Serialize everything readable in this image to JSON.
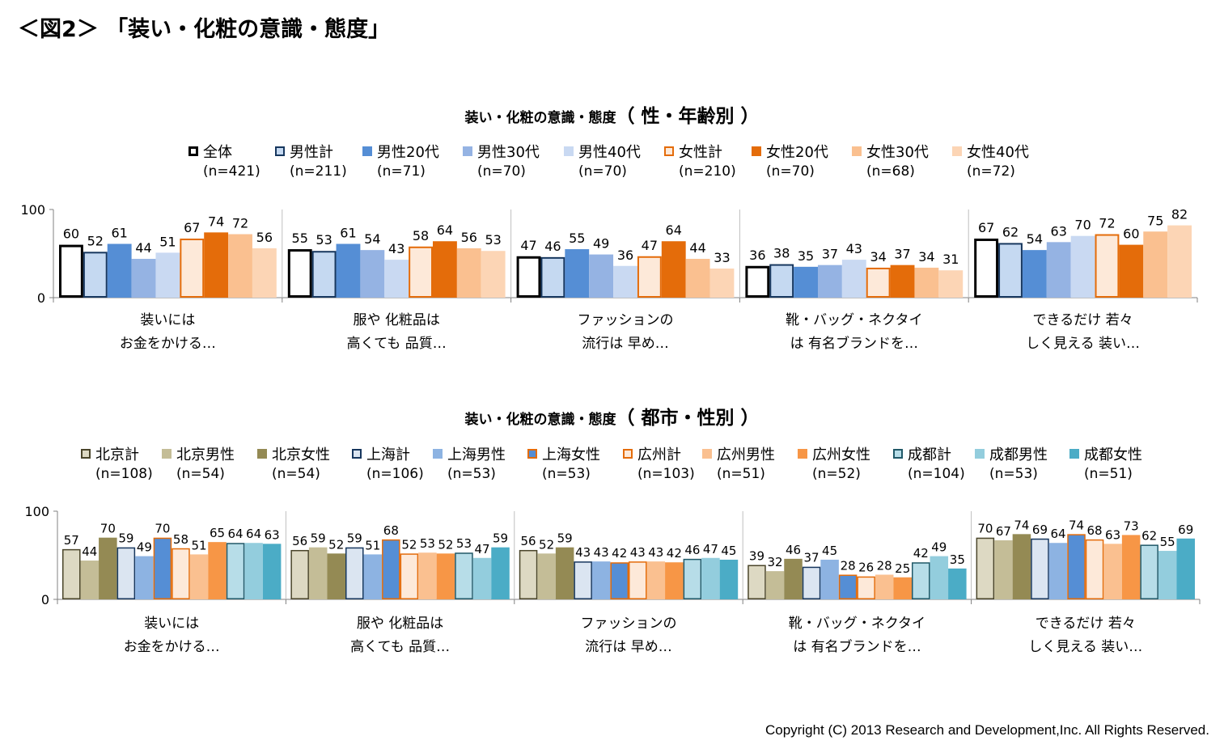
{
  "page": {
    "title": "＜図2＞ 「装い・化粧の意識・態度」",
    "copyright": "Copyright (C) 2013 Research and Development,Inc. All Rights Reserved."
  },
  "chart_data": [
    {
      "type": "bar",
      "title_main": "装い・化粧の意識・態度",
      "title_sub": "（ 性・年齢別 ）",
      "ylim": [
        0,
        100
      ],
      "yticks": [
        "0",
        "100"
      ],
      "categories": [
        [
          "装いには",
          "お金をかける…"
        ],
        [
          "服や 化粧品は",
          "高くても 品質…"
        ],
        [
          "ファッションの",
          "流行は 早め…"
        ],
        [
          "靴・バッグ・ネクタイ",
          "は 有名ブランドを…"
        ],
        [
          "できるだけ 若々",
          "しく見える 装い…"
        ]
      ],
      "series": [
        {
          "name": "全体",
          "n": "(n=421)",
          "fill": "#ffffff",
          "stroke": "#000000",
          "sw": 3,
          "values": [
            60,
            55,
            47,
            36,
            67
          ]
        },
        {
          "name": "男性計",
          "n": "(n=211)",
          "fill": "#c5d9f1",
          "stroke": "#17375e",
          "sw": 2,
          "values": [
            52,
            53,
            46,
            38,
            62
          ]
        },
        {
          "name": "男性20代",
          "n": "(n=71)",
          "fill": "#558ed5",
          "stroke": "#558ed5",
          "sw": 0,
          "values": [
            61,
            61,
            55,
            35,
            54
          ]
        },
        {
          "name": "男性30代",
          "n": "(n=70)",
          "fill": "#95b3e3",
          "stroke": "#95b3e3",
          "sw": 0,
          "values": [
            44,
            54,
            49,
            37,
            63
          ]
        },
        {
          "name": "男性40代",
          "n": "(n=70)",
          "fill": "#c9d9f2",
          "stroke": "#c9d9f2",
          "sw": 0,
          "values": [
            51,
            43,
            36,
            43,
            70
          ]
        },
        {
          "name": "女性計",
          "n": "(n=210)",
          "fill": "#fde9d9",
          "stroke": "#e46c0a",
          "sw": 2,
          "values": [
            67,
            58,
            47,
            34,
            72
          ]
        },
        {
          "name": "女性20代",
          "n": "(n=70)",
          "fill": "#e46c0a",
          "stroke": "#e46c0a",
          "sw": 0,
          "values": [
            74,
            64,
            64,
            37,
            60
          ]
        },
        {
          "name": "女性30代",
          "n": "(n=68)",
          "fill": "#fac090",
          "stroke": "#fac090",
          "sw": 0,
          "values": [
            72,
            56,
            44,
            34,
            75
          ]
        },
        {
          "name": "女性40代",
          "n": "(n=72)",
          "fill": "#fcd5b5",
          "stroke": "#fcd5b5",
          "sw": 0,
          "values": [
            56,
            53,
            33,
            31,
            82
          ]
        }
      ]
    },
    {
      "type": "bar",
      "title_main": "装い・化粧の意識・態度",
      "title_sub": "（ 都市・性別 ）",
      "ylim": [
        0,
        100
      ],
      "yticks": [
        "0",
        "100"
      ],
      "categories": [
        [
          "装いには",
          "お金をかける…"
        ],
        [
          "服や 化粧品は",
          "高くても 品質…"
        ],
        [
          "ファッションの",
          "流行は 早め…"
        ],
        [
          "靴・バッグ・ネクタイ",
          "は 有名ブランドを…"
        ],
        [
          "できるだけ 若々",
          "しく見える 装い…"
        ]
      ],
      "series": [
        {
          "name": "北京計",
          "n": "(n=108)",
          "fill": "#ddd9c3",
          "stroke": "#4a452a",
          "sw": 1.5,
          "values": [
            57,
            56,
            56,
            39,
            70
          ]
        },
        {
          "name": "北京男性",
          "n": "(n=54)",
          "fill": "#c4bd97",
          "stroke": "#c4bd97",
          "sw": 0,
          "values": [
            44,
            59,
            52,
            32,
            67
          ]
        },
        {
          "name": "北京女性",
          "n": "(n=54)",
          "fill": "#948a54",
          "stroke": "#948a54",
          "sw": 0,
          "values": [
            70,
            52,
            59,
            46,
            74
          ]
        },
        {
          "name": "上海計",
          "n": "(n=106)",
          "fill": "#dbe5f1",
          "stroke": "#17375e",
          "sw": 1.5,
          "values": [
            59,
            59,
            43,
            37,
            69
          ]
        },
        {
          "name": "上海男性",
          "n": "(n=53)",
          "fill": "#8db3e2",
          "stroke": "#8db3e2",
          "sw": 0,
          "values": [
            49,
            51,
            43,
            45,
            64
          ]
        },
        {
          "name": "上海女性",
          "n": "(n=53)",
          "fill": "#558ed5",
          "stroke": "#e46c0a",
          "sw": 1.5,
          "values": [
            70,
            68,
            42,
            28,
            74
          ]
        },
        {
          "name": "広州計",
          "n": "(n=103)",
          "fill": "#fde9d9",
          "stroke": "#e46c0a",
          "sw": 1.5,
          "values": [
            58,
            52,
            43,
            26,
            68
          ]
        },
        {
          "name": "広州男性",
          "n": "(n=51)",
          "fill": "#fac090",
          "stroke": "#fac090",
          "sw": 0,
          "values": [
            51,
            53,
            43,
            28,
            63
          ]
        },
        {
          "name": "広州女性",
          "n": "(n=52)",
          "fill": "#f79646",
          "stroke": "#f79646",
          "sw": 0,
          "values": [
            65,
            52,
            42,
            25,
            73
          ]
        },
        {
          "name": "成都計",
          "n": "(n=104)",
          "fill": "#b7dde8",
          "stroke": "#215968",
          "sw": 1.5,
          "values": [
            64,
            53,
            46,
            42,
            62
          ]
        },
        {
          "name": "成都男性",
          "n": "(n=53)",
          "fill": "#93cddd",
          "stroke": "#93cddd",
          "sw": 0,
          "values": [
            64,
            47,
            47,
            49,
            55
          ]
        },
        {
          "name": "成都女性",
          "n": "(n=51)",
          "fill": "#4bacc6",
          "stroke": "#4bacc6",
          "sw": 0,
          "values": [
            63,
            59,
            45,
            35,
            69
          ]
        }
      ]
    }
  ]
}
